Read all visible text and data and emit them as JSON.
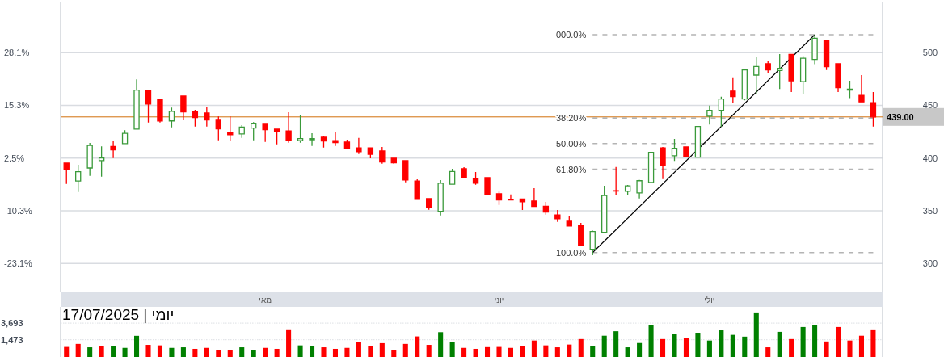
{
  "chart_data": [
    {
      "type": "candlestick",
      "categories": [
        null,
        null,
        null,
        null,
        null,
        null,
        null,
        null,
        null,
        null,
        null,
        null,
        null,
        null,
        null,
        null,
        null,
        "מאי",
        null,
        null,
        null,
        null,
        null,
        null,
        null,
        null,
        null,
        null,
        null,
        null,
        null,
        null,
        null,
        null,
        null,
        null,
        null,
        "יוני",
        null,
        null,
        null,
        null,
        null,
        null,
        null,
        null,
        null,
        null,
        null,
        null,
        null,
        null,
        null,
        null,
        null,
        "יולי",
        null,
        null,
        null,
        null,
        null,
        null,
        null,
        null,
        null,
        null,
        null,
        null,
        null,
        null
      ],
      "ohlc": [
        [
          395.2,
          395.2,
          375.5,
          389.3
        ],
        [
          378.3,
          393.6,
          367.8,
          387.0
        ],
        [
          390.6,
          414.3,
          383.1,
          412.0
        ],
        [
          397.5,
          411.0,
          382.4,
          400.0
        ],
        [
          411.0,
          416.6,
          400.0,
          407.7
        ],
        [
          413.6,
          426.4,
          413.6,
          423.5
        ],
        [
          427.4,
          474.6,
          427.4,
          464.4
        ],
        [
          463.9,
          464.9,
          433.7,
          451.3
        ],
        [
          455.5,
          455.5,
          433.7,
          435.2
        ],
        [
          435.2,
          447.8,
          429.1,
          444.4
        ],
        [
          458.8,
          458.8,
          436.0,
          443.7
        ],
        [
          444.2,
          445.7,
          429.9,
          438.3
        ],
        [
          442.7,
          448.0,
          429.9,
          436.0
        ],
        [
          436.6,
          439.4,
          416.9,
          427.6
        ],
        [
          424.3,
          439.4,
          416.1,
          422.2
        ],
        [
          422.8,
          431.2,
          419.2,
          429.4
        ],
        [
          428.4,
          434.0,
          416.9,
          433.0
        ],
        [
          432.7,
          432.7,
          415.3,
          426.8
        ],
        [
          427.4,
          427.4,
          413.0,
          425.3
        ],
        [
          425.8,
          443.4,
          414.6,
          416.9
        ],
        [
          416.6,
          440.9,
          414.6,
          418.4
        ],
        [
          417.4,
          423.5,
          411.5,
          418.4
        ],
        [
          419.7,
          420.5,
          410.0,
          416.1
        ],
        [
          416.6,
          425.1,
          411.5,
          414.6
        ],
        [
          415.1,
          417.4,
          408.4,
          409.2
        ],
        [
          409.7,
          419.2,
          403.8,
          406.1
        ],
        [
          409.7,
          409.7,
          399.8,
          403.6
        ],
        [
          406.7,
          410.5,
          394.6,
          396.2
        ],
        [
          399.8,
          399.8,
          394.4,
          395.4
        ],
        [
          397.5,
          397.5,
          377.0,
          379.3
        ],
        [
          378.3,
          379.8,
          360.9,
          360.9
        ],
        [
          361.5,
          361.5,
          351.0,
          353.3
        ],
        [
          349.4,
          379.1,
          345.6,
          376.2
        ],
        [
          375.2,
          389.8,
          375.2,
          387.3
        ],
        [
          389.8,
          391.3,
          380.8,
          381.6
        ],
        [
          380.6,
          386.7,
          374.7,
          376.2
        ],
        [
          381.4,
          381.4,
          364.8,
          365.5
        ],
        [
          366.1,
          368.1,
          355.6,
          360.2
        ],
        [
          360.7,
          365.5,
          360.2,
          360.2
        ],
        [
          361.2,
          361.2,
          350.7,
          358.6
        ],
        [
          359.2,
          371.4,
          354.1,
          354.1
        ],
        [
          354.3,
          358.4,
          346.4,
          348.7
        ],
        [
          346.1,
          350.7,
          339.5,
          342.5
        ],
        [
          340.0,
          344.6,
          335.6,
          335.6
        ],
        [
          336.1,
          338.5,
          316.5,
          317.5
        ],
        [
          313.4,
          331.3,
          307.8,
          330.3
        ],
        [
          329.5,
          373.7,
          329.5,
          364.5
        ],
        [
          369.1,
          391.6,
          365.1,
          368.6
        ],
        [
          368.4,
          374.5,
          365.1,
          373.7
        ],
        [
          367.0,
          379.3,
          361.7,
          378.5
        ],
        [
          376.8,
          405.4,
          376.8,
          405.4
        ],
        [
          409.7,
          410.5,
          380.1,
          392.6
        ],
        [
          402.1,
          418.2,
          397.2,
          409.2
        ],
        [
          410.5,
          410.5,
          401.0,
          401.0
        ],
        [
          400.8,
          429.9,
          400.8,
          429.9
        ],
        [
          439.7,
          449.7,
          431.8,
          445.3
        ],
        [
          445.3,
          458.1,
          429.9,
          456.0
        ],
        [
          463.5,
          476.5,
          452.2,
          458.4
        ],
        [
          456.0,
          483.6,
          454.7,
          483.6
        ],
        [
          478.7,
          495.6,
          460.3,
          486.9
        ],
        [
          489.4,
          492.5,
          481.0,
          483.5
        ],
        [
          483.0,
          498.6,
          465.4,
          485.0
        ],
        [
          498.3,
          498.3,
          462.6,
          473.3
        ],
        [
          472.5,
          496.7,
          460.3,
          494.7
        ],
        [
          493.6,
          517.0,
          489.0,
          513.6
        ],
        [
          511.8,
          511.8,
          483.5,
          486.6
        ],
        [
          489.4,
          489.4,
          462.6,
          466.7
        ],
        [
          464.4,
          473.3,
          456.8,
          465.4
        ],
        [
          459.5,
          478.7,
          453.3,
          453.3
        ],
        [
          452.6,
          462.6,
          429.9,
          439.0
        ]
      ],
      "colors": [
        "#ff0000",
        "#3a9a3a",
        "#3a9a3a",
        "#3a9a3a",
        "#ff0000",
        "#3a9a3a",
        "#3a9a3a",
        "#ff0000",
        "#ff0000",
        "#3a9a3a",
        "#ff0000",
        "#ff0000",
        "#ff0000",
        "#ff0000",
        "#ff0000",
        "#3a9a3a",
        "#3a9a3a",
        "#ff0000",
        "#ff0000",
        "#ff0000",
        "#3a9a3a",
        "#3a9a3a",
        "#ff0000",
        "#ff0000",
        "#ff0000",
        "#ff0000",
        "#ff0000",
        "#ff0000",
        "#ff0000",
        "#ff0000",
        "#ff0000",
        "#ff0000",
        "#3a9a3a",
        "#3a9a3a",
        "#ff0000",
        "#ff0000",
        "#ff0000",
        "#ff0000",
        "#ff0000",
        "#ff0000",
        "#ff0000",
        "#ff0000",
        "#ff0000",
        "#ff0000",
        "#ff0000",
        "#3a9a3a",
        "#3a9a3a",
        "#ff0000",
        "#3a9a3a",
        "#3a9a3a",
        "#3a9a3a",
        "#ff0000",
        "#3a9a3a",
        "#ff0000",
        "#3a9a3a",
        "#3a9a3a",
        "#3a9a3a",
        "#ff0000",
        "#3a9a3a",
        "#3a9a3a",
        "#ff0000",
        "#3a9a3a",
        "#ff0000",
        "#3a9a3a",
        "#3a9a3a",
        "#ff0000",
        "#ff0000",
        "#3a9a3a",
        "#ff0000",
        "#ff0000"
      ],
      "series": [
        {
          "type": "line",
          "name": "000.0%",
          "color": "#b4b4b4",
          "line_style": "dashed",
          "values": [
            null,
            null,
            null,
            null,
            null,
            null,
            null,
            null,
            null,
            null,
            null,
            null,
            null,
            null,
            null,
            null,
            null,
            null,
            null,
            null,
            null,
            null,
            null,
            null,
            null,
            null,
            null,
            null,
            null,
            null,
            null,
            null,
            null,
            null,
            null,
            null,
            null,
            null,
            null,
            null,
            null,
            null,
            null,
            null,
            null,
            517.0,
            517.0,
            517.0,
            517.0,
            517.0,
            517.0,
            517.0,
            517.0,
            517.0,
            517.0,
            517.0,
            517.0,
            517.0,
            517.0,
            517.0,
            517.0,
            517.0,
            517.0,
            517.0,
            517.0,
            517.0,
            517.0,
            517.0,
            517.0,
            517.0
          ]
        },
        {
          "type": "line",
          "name": "38.20%",
          "color": "#b4b4b4",
          "line_style": "dashed",
          "values": [
            null,
            null,
            null,
            null,
            null,
            null,
            null,
            null,
            null,
            null,
            null,
            null,
            null,
            null,
            null,
            null,
            null,
            null,
            null,
            null,
            null,
            null,
            null,
            null,
            null,
            null,
            null,
            null,
            null,
            null,
            null,
            null,
            null,
            null,
            null,
            null,
            null,
            null,
            null,
            null,
            null,
            null,
            null,
            null,
            null,
            438.0,
            438.0,
            438.0,
            438.0,
            438.0,
            438.0,
            438.0,
            438.0,
            438.0,
            438.0,
            438.0,
            438.0,
            438.0,
            438.0,
            438.0,
            438.0,
            438.0,
            438.0,
            438.0,
            438.0,
            438.0,
            438.0,
            438.0,
            438.0,
            438.0
          ]
        },
        {
          "type": "line",
          "name": "50.00%",
          "color": "#b4b4b4",
          "line_style": "dashed",
          "values": [
            null,
            null,
            null,
            null,
            null,
            null,
            null,
            null,
            null,
            null,
            null,
            null,
            null,
            null,
            null,
            null,
            null,
            null,
            null,
            null,
            null,
            null,
            null,
            null,
            null,
            null,
            null,
            null,
            null,
            null,
            null,
            null,
            null,
            null,
            null,
            null,
            null,
            null,
            null,
            null,
            null,
            null,
            null,
            null,
            null,
            413.7,
            413.7,
            413.7,
            413.7,
            413.7,
            413.7,
            413.7,
            413.7,
            413.7,
            413.7,
            413.7,
            413.7,
            413.7,
            413.7,
            413.7,
            413.7,
            413.7,
            413.7,
            413.7,
            413.7,
            413.7,
            413.7,
            413.7,
            413.7,
            413.7
          ]
        },
        {
          "type": "line",
          "name": "61.80%",
          "color": "#b4b4b4",
          "line_style": "dashed",
          "values": [
            null,
            null,
            null,
            null,
            null,
            null,
            null,
            null,
            null,
            null,
            null,
            null,
            null,
            null,
            null,
            null,
            null,
            null,
            null,
            null,
            null,
            null,
            null,
            null,
            null,
            null,
            null,
            null,
            null,
            null,
            null,
            null,
            null,
            null,
            null,
            null,
            null,
            null,
            null,
            null,
            null,
            null,
            null,
            null,
            null,
            389.3,
            389.3,
            389.3,
            389.3,
            389.3,
            389.3,
            389.3,
            389.3,
            389.3,
            389.3,
            389.3,
            389.3,
            389.3,
            389.3,
            389.3,
            389.3,
            389.3,
            389.3,
            389.3,
            389.3,
            389.3,
            389.3,
            389.3,
            389.3,
            389.3
          ]
        },
        {
          "type": "line",
          "name": "100.0%",
          "color": "#b4b4b4",
          "line_style": "dashed",
          "values": [
            null,
            null,
            null,
            null,
            null,
            null,
            null,
            null,
            null,
            null,
            null,
            null,
            null,
            null,
            null,
            null,
            null,
            null,
            null,
            null,
            null,
            null,
            null,
            null,
            null,
            null,
            null,
            null,
            null,
            null,
            null,
            null,
            null,
            null,
            null,
            null,
            null,
            null,
            null,
            null,
            null,
            null,
            null,
            null,
            null,
            310.3,
            310.3,
            310.3,
            310.3,
            310.3,
            310.3,
            310.3,
            310.3,
            310.3,
            310.3,
            310.3,
            310.3,
            310.3,
            310.3,
            310.3,
            310.3,
            310.3,
            310.3,
            310.3,
            310.3,
            310.3,
            310.3,
            310.3,
            310.3,
            310.3
          ]
        },
        {
          "type": "line",
          "color": "#000000",
          "values": [
            null,
            null,
            null,
            null,
            null,
            null,
            null,
            null,
            null,
            null,
            null,
            null,
            null,
            null,
            null,
            null,
            null,
            null,
            null,
            null,
            null,
            null,
            null,
            null,
            null,
            null,
            null,
            null,
            null,
            null,
            null,
            null,
            null,
            null,
            null,
            null,
            null,
            null,
            null,
            null,
            null,
            null,
            null,
            null,
            null,
            310.3,
            null,
            null,
            null,
            null,
            null,
            null,
            null,
            null,
            null,
            null,
            null,
            null,
            null,
            null,
            null,
            null,
            null,
            null,
            517.0,
            null,
            null,
            null,
            null,
            null
          ]
        }
      ],
      "ref_lines": [
        {
          "axis": "y",
          "value": 439.0,
          "label": "439.00",
          "color": "#d2700a"
        }
      ],
      "ylim": [
        272.6,
        548.4
      ],
      "yticks": [
        300,
        350,
        400,
        450,
        500
      ],
      "y2lim": [
        -30.11,
        40.49
      ],
      "y2ticks": [
        {
          "value": -23.1,
          "label": "-23.1%"
        },
        {
          "value": -10.3,
          "label": "-10.3%"
        },
        {
          "value": 2.5,
          "label": "2.5%"
        },
        {
          "value": 15.3,
          "label": "15.3%"
        },
        {
          "value": 28.1,
          "label": "28.1%"
        }
      ],
      "grid": "y"
    },
    {
      "type": "bar",
      "title": "יומי | 17/07/2025",
      "categories": [
        null,
        null,
        null,
        null,
        null,
        null,
        null,
        null,
        null,
        null,
        null,
        null,
        null,
        null,
        null,
        null,
        null,
        null,
        null,
        null,
        null,
        null,
        null,
        null,
        null,
        null,
        null,
        null,
        null,
        null,
        null,
        null,
        null,
        null,
        null,
        null,
        null,
        null,
        null,
        null,
        null,
        null,
        null,
        null,
        null,
        null,
        null,
        null,
        null,
        null,
        null,
        null,
        null,
        null,
        null,
        null,
        null,
        null,
        null,
        null,
        null,
        null,
        null,
        null,
        null,
        null,
        null,
        null,
        null,
        null
      ],
      "values": [
        990,
        1170,
        970,
        1020,
        1060,
        940,
        1830,
        1110,
        1080,
        940,
        970,
        890,
        940,
        850,
        850,
        970,
        850,
        940,
        890,
        2620,
        1080,
        1020,
        970,
        890,
        940,
        1280,
        1020,
        1220,
        850,
        1170,
        1770,
        1110,
        2240,
        1280,
        940,
        890,
        980,
        990,
        940,
        1020,
        1410,
        1080,
        970,
        1130,
        1530,
        1020,
        1840,
        2360,
        970,
        1230,
        3250,
        1530,
        2000,
        1660,
        2170,
        1410,
        2480,
        1930,
        1750,
        6660,
        970,
        2280,
        1530,
        2980,
        3250,
        1340,
        2980,
        1410,
        1840,
        2610
      ],
      "colors": [
        "#ff0000",
        "#ff0000",
        "#008000",
        "#ff0000",
        "#008000",
        "#008000",
        "#008000",
        "#ff0000",
        "#ff0000",
        "#008000",
        "#008000",
        "#ff0000",
        "#ff0000",
        "#ff0000",
        "#ff0000",
        "#008000",
        "#008000",
        "#ff0000",
        "#ff0000",
        "#ff0000",
        "#008000",
        "#008000",
        "#ff0000",
        "#ff0000",
        "#ff0000",
        "#ff0000",
        "#ff0000",
        "#ff0000",
        "#ff0000",
        "#ff0000",
        "#ff0000",
        "#ff0000",
        "#008000",
        "#008000",
        "#ff0000",
        "#ff0000",
        "#ff0000",
        "#ff0000",
        "#ff0000",
        "#ff0000",
        "#ff0000",
        "#ff0000",
        "#ff0000",
        "#ff0000",
        "#ff0000",
        "#008000",
        "#008000",
        "#008000",
        "#008000",
        "#008000",
        "#008000",
        "#ff0000",
        "#008000",
        "#ff0000",
        "#008000",
        "#008000",
        "#008000",
        "#008000",
        "#008000",
        "#008000",
        "#ff0000",
        "#008000",
        "#ff0000",
        "#008000",
        "#008000",
        "#ff0000",
        "#ff0000",
        "#ff0000",
        "#ff0000",
        "#ff0000"
      ],
      "ylim": [
        569,
        9061
      ],
      "yticks": [
        {
          "value": 1473,
          "label": "1,473"
        },
        {
          "value": 3693,
          "label": "3,693"
        }
      ],
      "log": "y",
      "grid": "y",
      "tick_labels": "y"
    }
  ]
}
